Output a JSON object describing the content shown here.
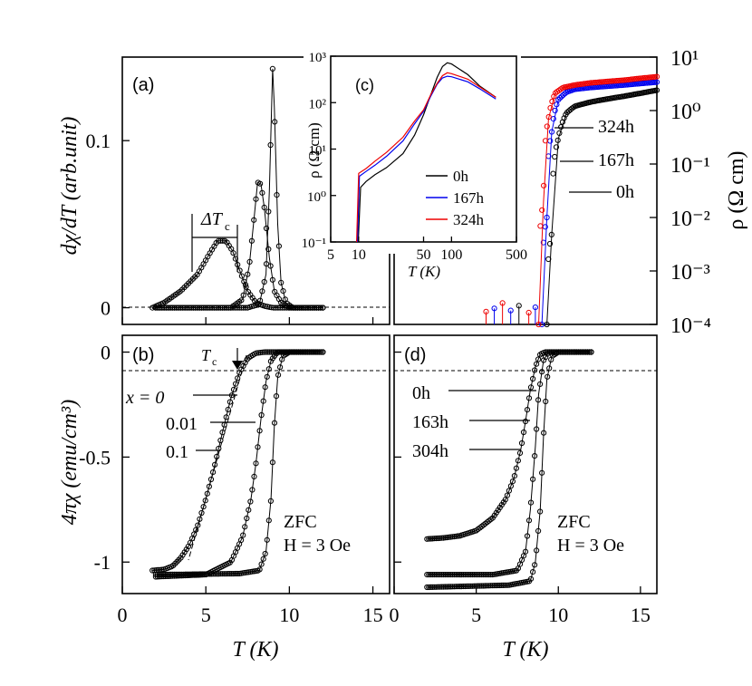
{
  "chart_data": [
    {
      "id": "a",
      "type": "line",
      "panel_label": "(a)",
      "ylabel": "dχ/dT (arb.unit)",
      "xlim": [
        0,
        16
      ],
      "ylim": [
        -0.01,
        0.15
      ],
      "yticks": [
        "0",
        "0.1"
      ],
      "annotation": "ΔT",
      "annotation_sub": "c",
      "series": [
        {
          "name": "x = 0",
          "x": [
            2,
            7.5,
            8.2,
            8.6,
            8.8,
            9.0,
            9.1,
            9.3,
            9.5,
            9.8,
            10.2,
            12
          ],
          "y": [
            0,
            0,
            0.002,
            0.02,
            0.07,
            0.143,
            0.12,
            0.05,
            0.015,
            0.003,
            0,
            0
          ]
        },
        {
          "name": "x = 0.01",
          "x": [
            2,
            6.5,
            7.2,
            7.6,
            7.9,
            8.1,
            8.3,
            8.5,
            8.8,
            9.1,
            9.5,
            10,
            12
          ],
          "y": [
            0,
            0,
            0.005,
            0.025,
            0.055,
            0.075,
            0.074,
            0.06,
            0.03,
            0.01,
            0.003,
            0,
            0
          ]
        },
        {
          "name": "x = 0.1",
          "x": [
            1.8,
            2.5,
            3.5,
            4.5,
            5.2,
            5.7,
            6.2,
            6.6,
            7.0,
            7.5,
            8.0,
            8.5,
            9,
            12
          ],
          "y": [
            0,
            0.003,
            0.01,
            0.02,
            0.032,
            0.04,
            0.04,
            0.034,
            0.023,
            0.01,
            0.003,
            0.001,
            0,
            0
          ]
        }
      ]
    },
    {
      "id": "b",
      "type": "line",
      "panel_label": "(b)",
      "ylabel": "4πχ (emu/cm³)",
      "xlabel": "T (K)",
      "xlim": [
        0,
        16
      ],
      "ylim": [
        -1.15,
        0.08
      ],
      "xticks": [
        "0",
        "5",
        "10",
        "15"
      ],
      "yticks": [
        "0",
        "-0.5",
        "-1"
      ],
      "tc_label": "T",
      "tc_sub": "c",
      "condition": [
        "ZFC",
        "H = 3 Oe"
      ],
      "series": [
        {
          "name": "x = 0",
          "x": [
            2,
            7,
            8.2,
            8.6,
            8.9,
            9.1,
            9.3,
            9.6,
            10,
            12
          ],
          "y": [
            -1.06,
            -1.055,
            -1.04,
            -0.95,
            -0.7,
            -0.35,
            -0.12,
            -0.02,
            0,
            0
          ]
        },
        {
          "name": "x = 0.01",
          "x": [
            2,
            5,
            6.5,
            7.2,
            7.7,
            8.0,
            8.3,
            8.6,
            8.9,
            9.3,
            12
          ],
          "y": [
            -1.07,
            -1.06,
            -1.0,
            -0.88,
            -0.7,
            -0.53,
            -0.32,
            -0.14,
            -0.04,
            0,
            0
          ]
        },
        {
          "name": "x = 0.1",
          "x": [
            1.8,
            2.5,
            3,
            3.5,
            4,
            4.5,
            5,
            5.5,
            6,
            6.5,
            7,
            7.5,
            8,
            8.5,
            9,
            12
          ],
          "y": [
            -1.04,
            -1.035,
            -1.02,
            -0.98,
            -0.92,
            -0.83,
            -0.7,
            -0.55,
            -0.38,
            -0.22,
            -0.1,
            -0.03,
            -0.005,
            0,
            0,
            0
          ]
        }
      ],
      "labels": [
        "x = 0",
        "0.01",
        "0.1"
      ]
    },
    {
      "id": "d",
      "type": "line",
      "panel_label": "(d)",
      "xlabel": "T (K)",
      "xlim": [
        0,
        16
      ],
      "ylim": [
        -1.15,
        0.08
      ],
      "xticks": [
        "0",
        "5",
        "10",
        "15"
      ],
      "condition": [
        "ZFC",
        "H = 3 Oe"
      ],
      "series": [
        {
          "name": "0h",
          "x": [
            2,
            7,
            8.3,
            8.6,
            8.9,
            9.1,
            9.3,
            9.6,
            10,
            12
          ],
          "y": [
            -1.12,
            -1.11,
            -1.09,
            -1.0,
            -0.75,
            -0.4,
            -0.13,
            -0.02,
            0,
            0
          ]
        },
        {
          "name": "163h",
          "x": [
            2,
            6,
            7.5,
            8,
            8.3,
            8.6,
            8.8,
            9.1,
            9.4,
            12
          ],
          "y": [
            -1.06,
            -1.06,
            -1.04,
            -0.95,
            -0.75,
            -0.45,
            -0.2,
            -0.04,
            0,
            0
          ]
        },
        {
          "name": "304h",
          "x": [
            2,
            3,
            4,
            5,
            6,
            6.8,
            7.3,
            7.7,
            8.0,
            8.3,
            8.6,
            8.9,
            9.2,
            12
          ],
          "y": [
            -0.89,
            -0.885,
            -0.875,
            -0.85,
            -0.79,
            -0.7,
            -0.6,
            -0.47,
            -0.33,
            -0.18,
            -0.07,
            -0.01,
            0,
            0
          ]
        }
      ],
      "labels": [
        "0h",
        "163h",
        "304h"
      ]
    },
    {
      "id": "rho",
      "type": "line",
      "ylabel": "ρ (Ω cm)",
      "xlim": [
        0,
        16
      ],
      "ylog": true,
      "ylim": [
        0.0001,
        10
      ],
      "yticks": [
        "10¹",
        "10⁰",
        "10⁻¹",
        "10⁻²",
        "10⁻³",
        "10⁻⁴"
      ],
      "series": [
        {
          "name": "0h",
          "color": "#000000",
          "x": [
            9.3,
            9.6,
            10,
            10.5,
            11,
            12,
            13,
            14,
            15,
            16
          ],
          "y": [
            0.0001,
            0.005,
            0.3,
            0.9,
            1.2,
            1.45,
            1.65,
            1.85,
            2.1,
            2.4
          ]
        },
        {
          "name": "167h",
          "color": "#0000ee",
          "x": [
            9.0,
            9.3,
            9.6,
            10,
            10.5,
            11,
            12,
            13,
            14,
            15,
            16
          ],
          "y": [
            0.0001,
            0.01,
            0.4,
            1.6,
            2.2,
            2.5,
            2.7,
            2.85,
            3.0,
            3.2,
            3.4
          ]
        },
        {
          "name": "324h",
          "color": "#ee0000",
          "x": [
            8.8,
            9.1,
            9.4,
            9.8,
            10.3,
            11,
            12,
            13,
            14,
            15,
            16
          ],
          "y": [
            0.0001,
            0.02,
            0.7,
            2.1,
            2.7,
            3.0,
            3.3,
            3.5,
            3.7,
            4.0,
            4.3
          ]
        }
      ],
      "labels": [
        "324h",
        "167h",
        "0h"
      ]
    },
    {
      "id": "c",
      "type": "line",
      "panel_label": "(c)",
      "xlabel": "T (K)",
      "ylabel": "ρ (Ω cm)",
      "xlog": true,
      "ylog": true,
      "xlim": [
        5,
        500
      ],
      "ylim": [
        0.1,
        1000
      ],
      "xticks": [
        "5",
        "10",
        "50",
        "100",
        "500"
      ],
      "yticks": [
        "10³",
        "10²",
        "10¹",
        "10⁰",
        "10⁻¹"
      ],
      "legend": [
        "0h",
        "167h",
        "324h"
      ],
      "series": [
        {
          "name": "0h",
          "color": "#000000",
          "x": [
            9.9,
            10.5,
            12,
            15,
            20,
            30,
            40,
            50,
            60,
            70,
            80,
            90,
            100,
            150,
            200,
            300
          ],
          "y": [
            0.1,
            1.5,
            2.0,
            2.8,
            4,
            8,
            20,
            55,
            150,
            350,
            600,
            720,
            680,
            400,
            230,
            130
          ]
        },
        {
          "name": "167h",
          "color": "#0000ee",
          "x": [
            9.7,
            10.2,
            12,
            15,
            20,
            30,
            40,
            50,
            60,
            70,
            80,
            90,
            100,
            150,
            200,
            300
          ],
          "y": [
            0.1,
            2.6,
            3.3,
            4.5,
            7,
            15,
            35,
            65,
            140,
            250,
            340,
            370,
            360,
            280,
            200,
            120
          ]
        },
        {
          "name": "324h",
          "color": "#ee0000",
          "x": [
            9.5,
            10,
            12,
            15,
            20,
            30,
            40,
            50,
            60,
            70,
            80,
            90,
            100,
            150,
            200,
            300
          ],
          "y": [
            0.1,
            3.0,
            3.8,
            5.5,
            8.5,
            18,
            40,
            70,
            150,
            260,
            380,
            440,
            420,
            320,
            220,
            130
          ]
        }
      ]
    }
  ]
}
